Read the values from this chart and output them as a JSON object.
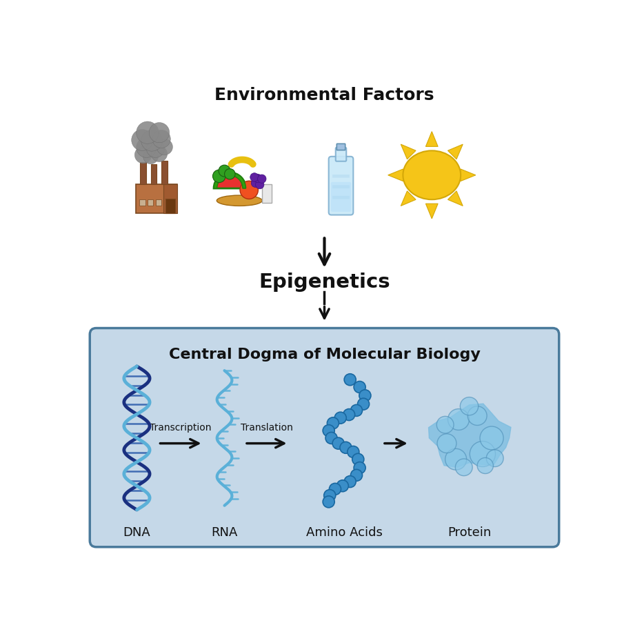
{
  "title_env": "Environmental Factors",
  "title_epigenetics": "Epigenetics",
  "title_central_dogma": "Central Dogma of Molecular Biology",
  "labels_bottom": [
    "DNA",
    "RNA",
    "Amino Acids",
    "Protein"
  ],
  "labels_arrows": [
    "Transcription",
    "Translation"
  ],
  "bg_color": "#ffffff",
  "box_fill": "#c5d8e8",
  "box_edge": "#4a7a9b",
  "dna_color1": "#1a3080",
  "dna_color2": "#5ab0d8",
  "rna_color": "#5ab0d8",
  "amino_color": "#3a8ec8",
  "protein_color": "#7abce0",
  "arrow_color": "#111111",
  "title_fontsize": 18,
  "label_fontsize": 13,
  "arrow_label_fontsize": 10,
  "sun_color": "#f5c518",
  "factory_brown": "#b87040",
  "smoke_color": "#888888"
}
